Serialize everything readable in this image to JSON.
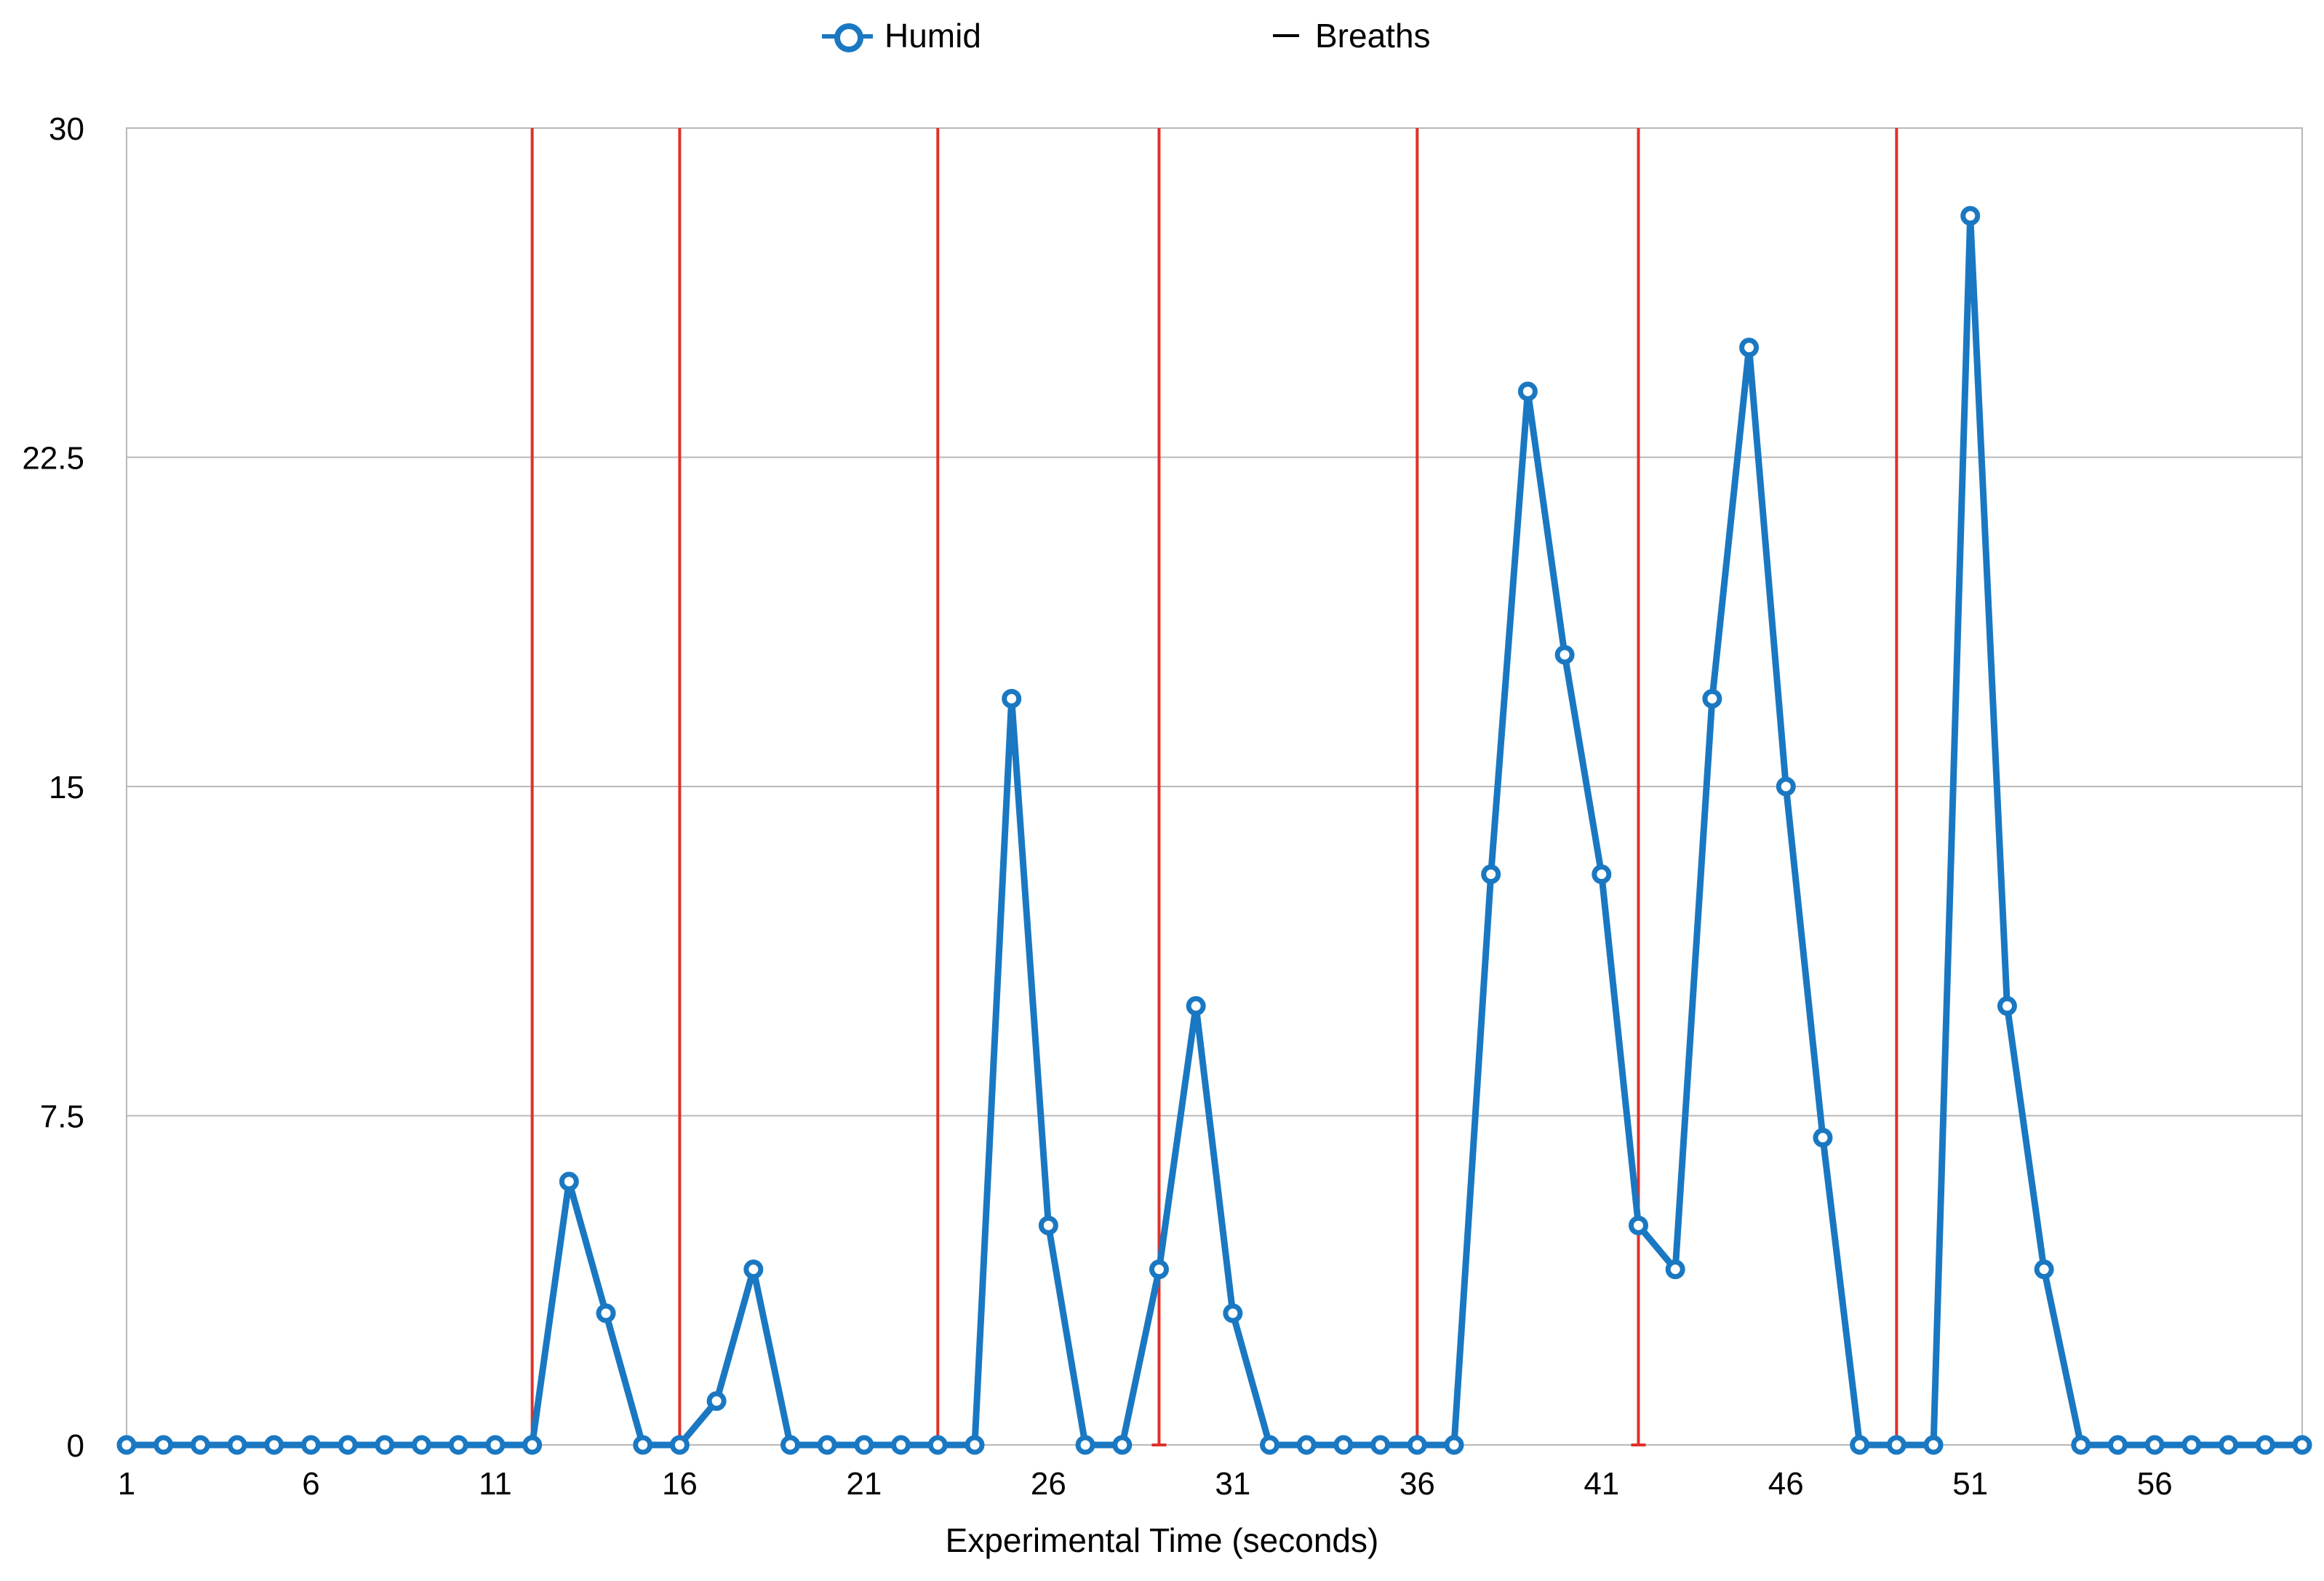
{
  "chart_data": {
    "type": "line",
    "title": "",
    "xlabel": "Experimental Time (seconds)",
    "ylabel": "",
    "ylim": [
      0,
      30
    ],
    "xlim": [
      1,
      60
    ],
    "x_ticks": [
      1,
      6,
      11,
      16,
      21,
      26,
      31,
      36,
      41,
      46,
      51,
      56
    ],
    "y_ticks": [
      0,
      7.5,
      15,
      22.5,
      30
    ],
    "y_tick_labels": [
      "0",
      "7.5",
      "15",
      "22.5",
      "30"
    ],
    "grid": "horizontal",
    "legend": "top-center",
    "series": [
      {
        "name": "Humid",
        "color": "#1a78c2",
        "marker": "open-circle",
        "x": [
          1,
          2,
          3,
          4,
          5,
          6,
          7,
          8,
          9,
          10,
          11,
          12,
          13,
          14,
          15,
          16,
          17,
          18,
          19,
          20,
          21,
          22,
          23,
          24,
          25,
          26,
          27,
          28,
          29,
          30,
          31,
          32,
          33,
          34,
          35,
          36,
          37,
          38,
          39,
          40,
          41,
          42,
          43,
          44,
          45,
          46,
          47,
          48,
          49,
          50,
          51,
          52,
          53,
          54,
          55,
          56,
          57,
          58,
          59,
          60
        ],
        "values": [
          0,
          0,
          0,
          0,
          0,
          0,
          0,
          0,
          0,
          0,
          0,
          0,
          6,
          3,
          0,
          0,
          1,
          4,
          0,
          0,
          0,
          0,
          0,
          0,
          17,
          5,
          0,
          0,
          4,
          10,
          3,
          0,
          0,
          0,
          0,
          0,
          0,
          13,
          24,
          18,
          13,
          5,
          4,
          17,
          25,
          15,
          7,
          0,
          0,
          0,
          28,
          10,
          4,
          0,
          0,
          0,
          0,
          0,
          0,
          0
        ]
      },
      {
        "name": "Breaths",
        "color": "#e0302a",
        "type": "vertical-lines",
        "x": [
          12,
          16,
          23,
          29,
          36,
          42,
          49
        ]
      }
    ]
  }
}
